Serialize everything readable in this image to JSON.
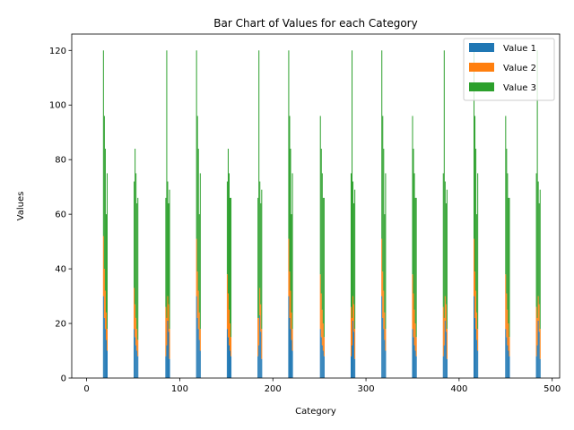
{
  "chart_data": {
    "type": "bar",
    "stacked": true,
    "title": "Bar Chart of Values for each Category",
    "xlabel": "Category",
    "ylabel": "Values",
    "xlim": [
      -16,
      508
    ],
    "ylim": [
      0,
      126
    ],
    "xticks": [
      0,
      100,
      200,
      300,
      400,
      500
    ],
    "yticks": [
      0,
      20,
      40,
      60,
      80,
      100,
      120
    ],
    "grid": false,
    "legend_position": "top-right",
    "group_centers": [
      20,
      53,
      87,
      120,
      153,
      186,
      219,
      253,
      286,
      319,
      352,
      385,
      418,
      452,
      485
    ],
    "group_offsets": [
      -2,
      -1,
      0,
      1,
      2
    ],
    "bar_width": 0.9,
    "series": [
      {
        "name": "Value 1",
        "color": "#1f77b4",
        "values": [
          [
            30,
            22,
            18,
            14,
            10
          ],
          [
            18,
            15,
            12,
            10,
            8
          ],
          [
            8,
            12,
            21,
            17,
            7
          ],
          [
            30,
            22,
            18,
            14,
            10
          ],
          [
            18,
            15,
            12,
            10,
            8
          ],
          [
            8,
            12,
            23,
            17,
            7
          ],
          [
            30,
            22,
            18,
            14,
            10
          ],
          [
            18,
            15,
            12,
            10,
            8
          ],
          [
            8,
            12,
            21,
            17,
            7
          ],
          [
            30,
            22,
            18,
            14,
            10
          ],
          [
            18,
            15,
            12,
            10,
            8
          ],
          [
            8,
            12,
            21,
            17,
            7
          ],
          [
            30,
            22,
            18,
            14,
            10
          ],
          [
            18,
            15,
            12,
            10,
            8
          ],
          [
            8,
            12,
            21,
            17,
            7
          ]
        ]
      },
      {
        "name": "Value 2",
        "color": "#ff7f0e",
        "values": [
          [
            22,
            18,
            14,
            10,
            8
          ],
          [
            15,
            12,
            10,
            8,
            6
          ],
          [
            18,
            10,
            9,
            10,
            11
          ],
          [
            21,
            17,
            14,
            10,
            8
          ],
          [
            20,
            16,
            13,
            10,
            7
          ],
          [
            14,
            10,
            10,
            10,
            11
          ],
          [
            21,
            17,
            14,
            10,
            8
          ],
          [
            20,
            16,
            13,
            10,
            7
          ],
          [
            18,
            10,
            9,
            10,
            11
          ],
          [
            21,
            17,
            14,
            10,
            8
          ],
          [
            20,
            16,
            13,
            10,
            7
          ],
          [
            18,
            10,
            9,
            10,
            11
          ],
          [
            21,
            17,
            14,
            10,
            8
          ],
          [
            20,
            16,
            13,
            10,
            7
          ],
          [
            18,
            10,
            9,
            10,
            11
          ]
        ]
      },
      {
        "name": "Value 3",
        "color": "#2ca02c",
        "values": [
          [
            68,
            56,
            52,
            36,
            57
          ],
          [
            39,
            57,
            53,
            46,
            52
          ],
          [
            40,
            98,
            42,
            37,
            51
          ],
          [
            69,
            57,
            52,
            36,
            57
          ],
          [
            34,
            53,
            50,
            46,
            51
          ],
          [
            44,
            98,
            39,
            37,
            51
          ],
          [
            69,
            57,
            52,
            36,
            57
          ],
          [
            58,
            53,
            50,
            46,
            51
          ],
          [
            49,
            98,
            42,
            37,
            51
          ],
          [
            69,
            57,
            52,
            36,
            57
          ],
          [
            58,
            53,
            50,
            46,
            51
          ],
          [
            49,
            98,
            42,
            37,
            51
          ],
          [
            69,
            57,
            52,
            36,
            57
          ],
          [
            58,
            53,
            50,
            46,
            51
          ],
          [
            49,
            98,
            42,
            37,
            51
          ]
        ]
      }
    ]
  }
}
